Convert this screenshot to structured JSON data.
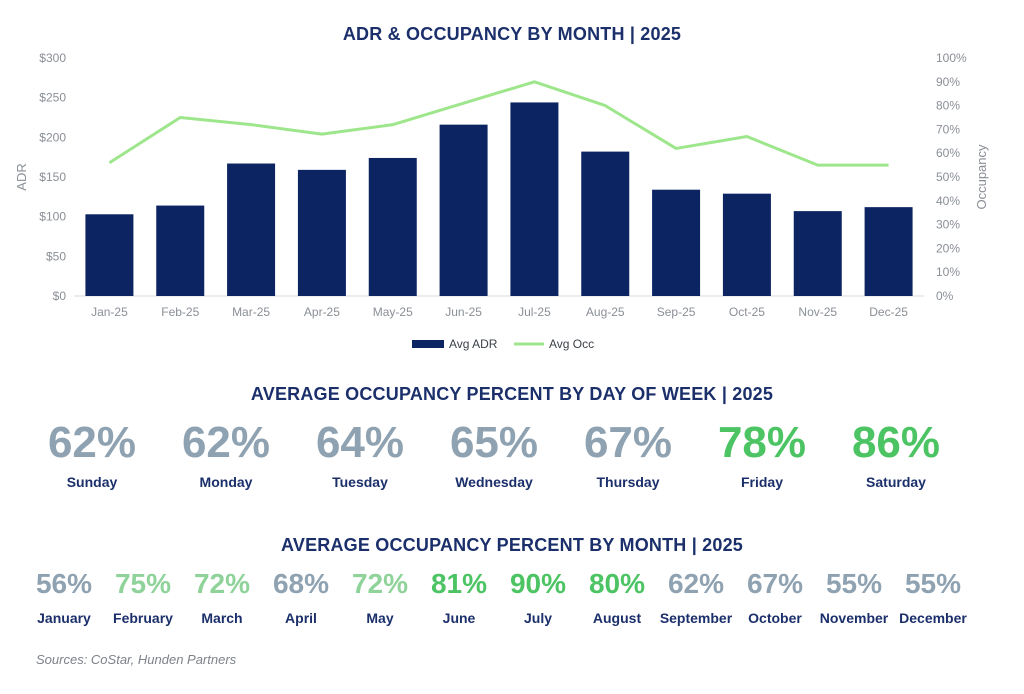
{
  "chart_title": "ADR & OCCUPANCY BY MONTH | 2025",
  "chart_data": {
    "type": "bar",
    "categories": [
      "Jan-25",
      "Feb-25",
      "Mar-25",
      "Apr-25",
      "May-25",
      "Jun-25",
      "Jul-25",
      "Aug-25",
      "Sep-25",
      "Oct-25",
      "Nov-25",
      "Dec-25"
    ],
    "series": [
      {
        "name": "Avg ADR",
        "type": "bar",
        "axis": "left",
        "color": "#0d2462",
        "values": [
          103,
          114,
          167,
          159,
          174,
          216,
          244,
          182,
          134,
          129,
          107,
          112
        ]
      },
      {
        "name": "Avg Occ",
        "type": "line",
        "axis": "right",
        "color": "#9ee68c",
        "values": [
          56,
          75,
          72,
          68,
          72,
          81,
          90,
          80,
          62,
          67,
          55,
          55
        ]
      }
    ],
    "ylabel": "ADR",
    "ylabel_right": "Occupancy",
    "ylim": [
      0,
      300
    ],
    "ylim_right": [
      0,
      100
    ],
    "yticks": [
      "$0",
      "$50",
      "$100",
      "$150",
      "$200",
      "$250",
      "$300"
    ],
    "yticks_right": [
      "0%",
      "10%",
      "20%",
      "30%",
      "40%",
      "50%",
      "60%",
      "70%",
      "80%",
      "90%",
      "100%"
    ],
    "grid": false,
    "legend_position": "bottom-center"
  },
  "dow_title": "AVERAGE OCCUPANCY PERCENT BY DAY OF WEEK | 2025",
  "dow": [
    {
      "pct": "62%",
      "day": "Sunday",
      "color": "#8fa2b1"
    },
    {
      "pct": "62%",
      "day": "Monday",
      "color": "#8fa2b1"
    },
    {
      "pct": "64%",
      "day": "Tuesday",
      "color": "#8fa2b1"
    },
    {
      "pct": "65%",
      "day": "Wednesday",
      "color": "#8fa2b1"
    },
    {
      "pct": "67%",
      "day": "Thursday",
      "color": "#8fa2b1"
    },
    {
      "pct": "78%",
      "day": "Friday",
      "color": "#4cc463"
    },
    {
      "pct": "86%",
      "day": "Saturday",
      "color": "#4cc463"
    }
  ],
  "month_title": "AVERAGE OCCUPANCY PERCENT BY MONTH | 2025",
  "months": [
    {
      "pct": "56%",
      "name": "January",
      "color": "#8fa2b1"
    },
    {
      "pct": "75%",
      "name": "February",
      "color": "#8fd39a"
    },
    {
      "pct": "72%",
      "name": "March",
      "color": "#8fd39a"
    },
    {
      "pct": "68%",
      "name": "April",
      "color": "#8fa2b1"
    },
    {
      "pct": "72%",
      "name": "May",
      "color": "#8fd39a"
    },
    {
      "pct": "81%",
      "name": "June",
      "color": "#4cc463"
    },
    {
      "pct": "90%",
      "name": "July",
      "color": "#4cc463"
    },
    {
      "pct": "80%",
      "name": "August",
      "color": "#4cc463"
    },
    {
      "pct": "62%",
      "name": "September",
      "color": "#8fa2b1"
    },
    {
      "pct": "67%",
      "name": "October",
      "color": "#8fa2b1"
    },
    {
      "pct": "55%",
      "name": "November",
      "color": "#8fa2b1"
    },
    {
      "pct": "55%",
      "name": "December",
      "color": "#8fa2b1"
    }
  ],
  "source": "Sources: CoStar, Hunden Partners"
}
